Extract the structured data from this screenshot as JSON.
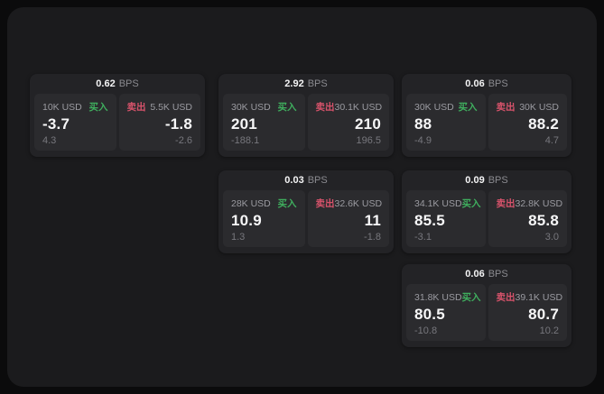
{
  "labels": {
    "buy": "买入",
    "sell": "卖出",
    "bps_suffix": "BPS"
  },
  "colors": {
    "buy": "#3fae5e",
    "sell": "#d8536b",
    "panel_bg": "#1b1b1d",
    "card_bg": "#232326",
    "tile_bg": "#2b2b2e",
    "value_text": "#f7f7f8",
    "muted_text": "#9b9ba1"
  },
  "cards": [
    {
      "row": 1,
      "col": 1,
      "bps": "0.62",
      "buy": {
        "size": "10K USD",
        "value": "-3.7",
        "sub": "4.3"
      },
      "sell": {
        "size": "5.5K USD",
        "value": "-1.8",
        "sub": "-2.6"
      }
    },
    {
      "row": 1,
      "col": 2,
      "bps": "2.92",
      "buy": {
        "size": "30K USD",
        "value": "201",
        "sub": "-188.1"
      },
      "sell": {
        "size": "30.1K USD",
        "value": "210",
        "sub": "196.5"
      }
    },
    {
      "row": 1,
      "col": 3,
      "bps": "0.06",
      "buy": {
        "size": "30K USD",
        "value": "88",
        "sub": "-4.9"
      },
      "sell": {
        "size": "30K USD",
        "value": "88.2",
        "sub": "4.7"
      }
    },
    {
      "row": 2,
      "col": 2,
      "bps": "0.03",
      "buy": {
        "size": "28K USD",
        "value": "10.9",
        "sub": "1.3"
      },
      "sell": {
        "size": "32.6K USD",
        "value": "11",
        "sub": "-1.8"
      }
    },
    {
      "row": 2,
      "col": 3,
      "bps": "0.09",
      "buy": {
        "size": "34.1K USD",
        "value": "85.5",
        "sub": "-3.1"
      },
      "sell": {
        "size": "32.8K USD",
        "value": "85.8",
        "sub": "3.0"
      }
    },
    {
      "row": 3,
      "col": 3,
      "bps": "0.06",
      "buy": {
        "size": "31.8K USD",
        "value": "80.5",
        "sub": "-10.8"
      },
      "sell": {
        "size": "39.1K USD",
        "value": "80.7",
        "sub": "10.2"
      }
    }
  ]
}
